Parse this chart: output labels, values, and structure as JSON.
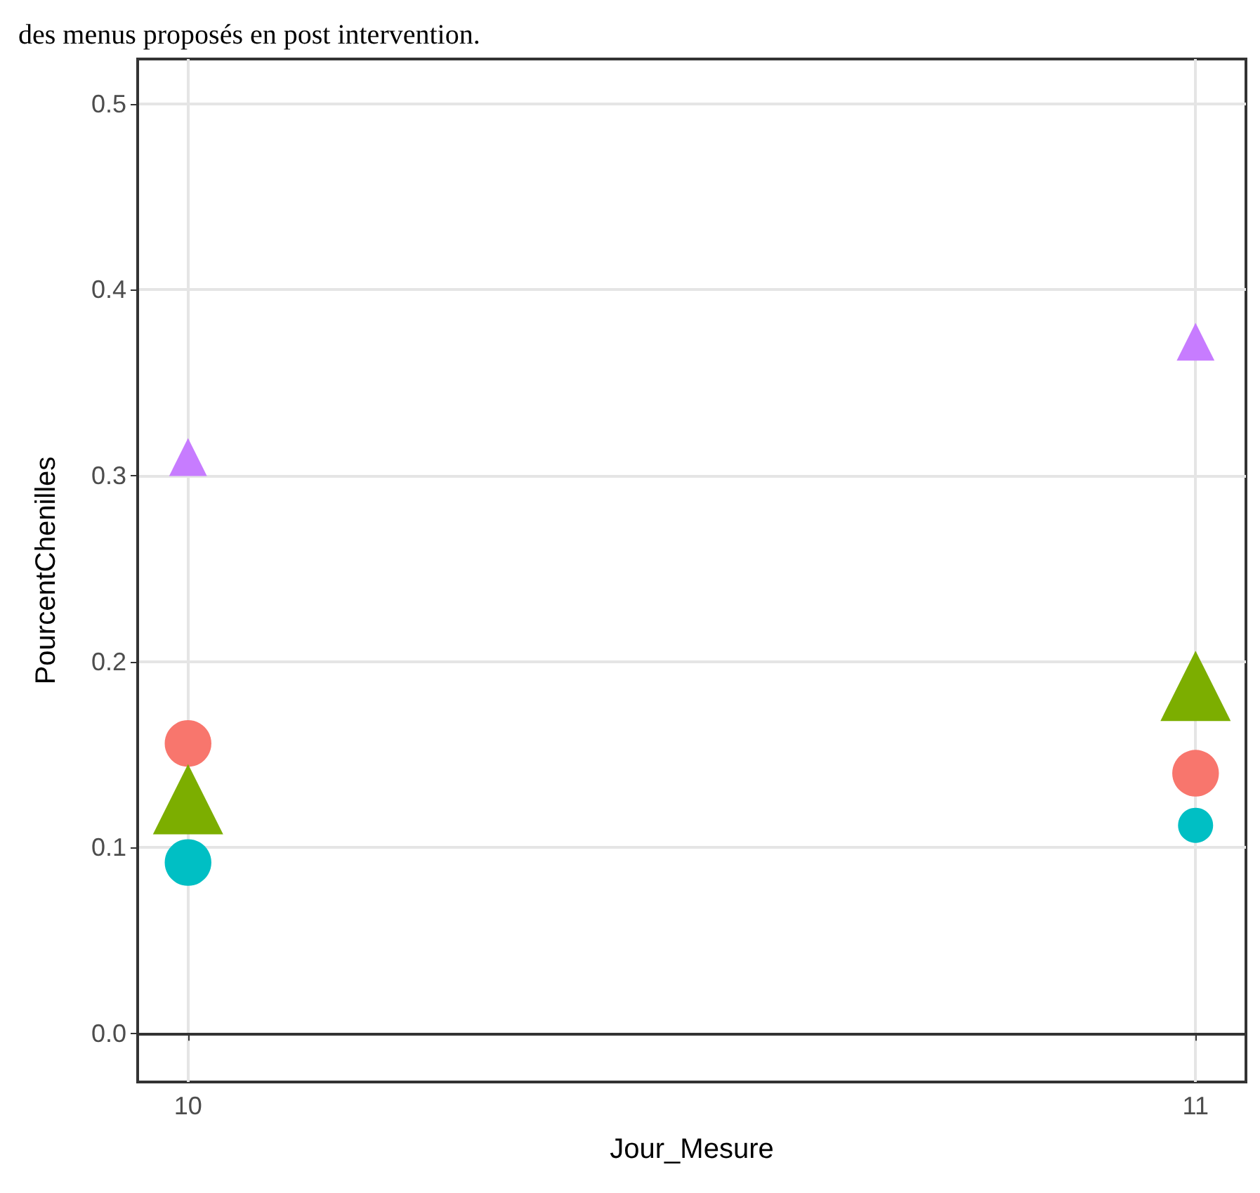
{
  "chart_data": {
    "type": "bubble",
    "title": "des menus proposés en post intervention.",
    "xlabel": "Jour_Mesure",
    "ylabel": "PourcentChenilles",
    "x": [
      10,
      11
    ],
    "xlim": [
      9.95,
      11.05
    ],
    "xticks": [
      10,
      11
    ],
    "ylim": [
      -0.026,
      0.524
    ],
    "yticks": [
      {
        "value": 0,
        "label": "0.0"
      },
      {
        "value": 0.1,
        "label": "0.1"
      },
      {
        "value": 0.2,
        "label": "0.2"
      },
      {
        "value": 0.3,
        "label": "0.3"
      },
      {
        "value": 0.4,
        "label": "0.4"
      },
      {
        "value": 0.5,
        "label": "0.5"
      }
    ],
    "grid": true,
    "series": [
      {
        "color": "#c77cff",
        "marker": "triangle",
        "values": [
          0.31,
          0.372
        ],
        "sizes": [
          0.29,
          0.29
        ]
      },
      {
        "color": "#f8766d",
        "marker": "circle",
        "values": [
          0.156,
          0.14
        ],
        "sizes": [
          0.69,
          0.69
        ]
      },
      {
        "color": "#7cae00",
        "marker": "triangle",
        "values": [
          0.126,
          0.187
        ],
        "sizes": [
          1,
          1
        ]
      },
      {
        "color": "#00bfc4",
        "marker": "circle",
        "values": [
          0.092,
          0.112
        ],
        "sizes": [
          0.69,
          0.39
        ]
      }
    ]
  }
}
